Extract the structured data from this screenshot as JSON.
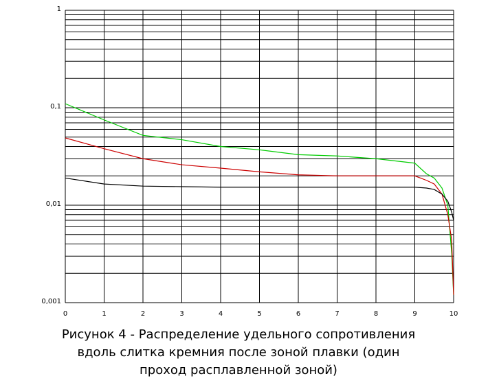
{
  "chart_data": {
    "type": "line",
    "title": "Рисунок 4 - Распределение удельного сопротивления вдоль слитка кремния после зоной плавки (один проход расплавленной зоной)",
    "x": [
      0,
      1,
      2,
      3,
      4,
      5,
      6,
      7,
      8,
      9,
      9.3,
      9.5,
      9.7,
      9.85,
      9.95,
      10
    ],
    "series": [
      {
        "color": "#00cc00",
        "values": [
          0.11,
          0.075,
          0.052,
          0.047,
          0.04,
          0.037,
          0.033,
          0.032,
          0.03,
          0.027,
          0.021,
          0.019,
          0.015,
          0.01,
          0.0032,
          0.0012
        ]
      },
      {
        "color": "#cc0000",
        "values": [
          0.049,
          0.038,
          0.03,
          0.026,
          0.024,
          0.022,
          0.0205,
          0.02,
          0.02,
          0.02,
          0.018,
          0.0165,
          0.013,
          0.008,
          0.0044,
          0.0012
        ]
      },
      {
        "color": "#000000",
        "values": [
          0.019,
          0.0165,
          0.0157,
          0.0155,
          0.0153,
          0.0153,
          0.0153,
          0.0153,
          0.0153,
          0.0153,
          0.015,
          0.0145,
          0.013,
          0.011,
          0.0085,
          0.007
        ]
      }
    ],
    "xlim": [
      0,
      10
    ],
    "xticks": [
      0,
      1,
      2,
      3,
      4,
      5,
      6,
      7,
      8,
      9,
      10
    ],
    "ylim": [
      0.001,
      1
    ],
    "yticks": [
      {
        "value": 0.001,
        "label": "0,001"
      },
      {
        "value": 0.01,
        "label": "0,01"
      },
      {
        "value": 0.1,
        "label": "0,1"
      },
      1
    ],
    "log_y": true,
    "grid": true
  }
}
